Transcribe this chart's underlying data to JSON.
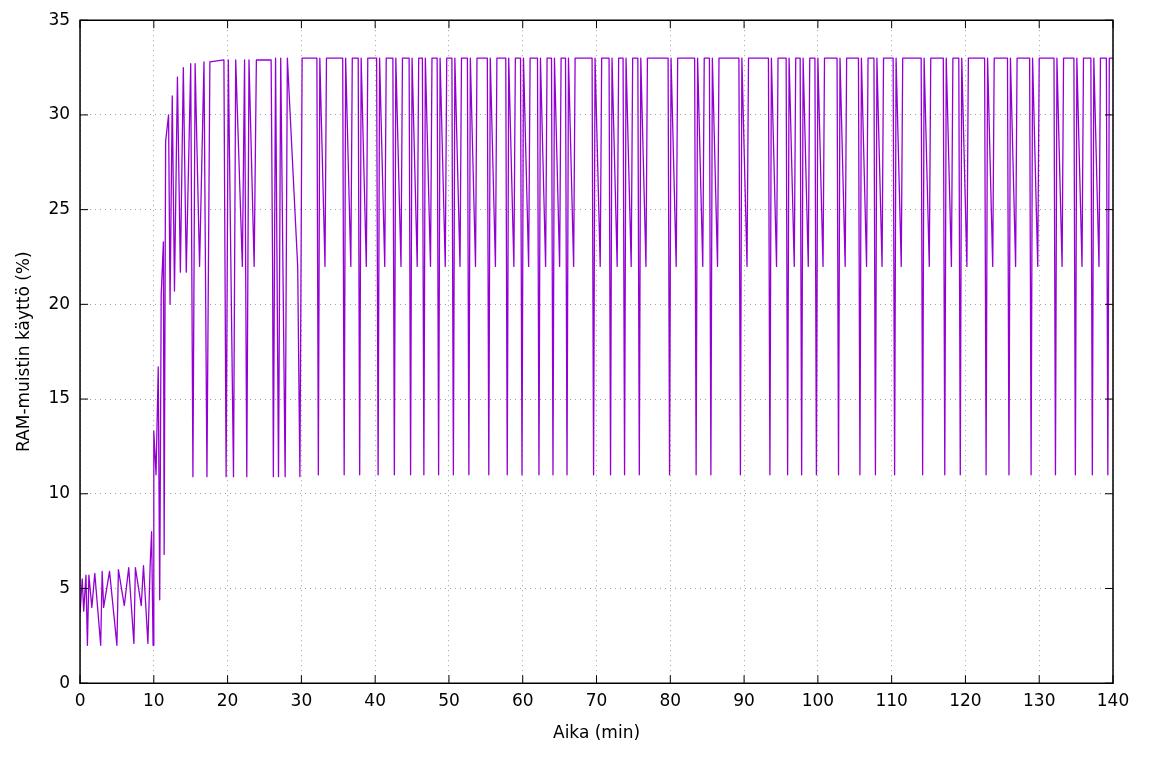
{
  "chart_data": {
    "type": "line",
    "xlabel": "Aika (min)",
    "ylabel": "RAM-muistin käyttö (%)",
    "xlim": [
      0,
      140
    ],
    "xticks": [
      0,
      10,
      20,
      30,
      40,
      50,
      60,
      70,
      80,
      90,
      100,
      110,
      120,
      130,
      140
    ],
    "ylim": [
      0,
      35
    ],
    "yticks": [
      0,
      5,
      10,
      15,
      20,
      25,
      30,
      35
    ],
    "grid": true,
    "legend": false,
    "series": [
      {
        "color": "#9400d3",
        "x": [
          0,
          0.3,
          0.5,
          0.8,
          1.0,
          1.2,
          1.6,
          2.0,
          2.8,
          3.0,
          3.2,
          4.0,
          5.0,
          5.2,
          6.0,
          6.6,
          7.3,
          7.5,
          8.3,
          8.6,
          9.2,
          9.5,
          9.7,
          9.9,
          10.0,
          10.3,
          10.6,
          10.8,
          11.0,
          11.3,
          11.4,
          11.6,
          12.0,
          12.2,
          12.5,
          12.8,
          13.2,
          13.6,
          14.0,
          14.4,
          15.0,
          15.3,
          15.6,
          16.2,
          16.8,
          17.2,
          17.6,
          19.5,
          19.8,
          20.1,
          20.8,
          21.1,
          22.0,
          22.3,
          22.6,
          22.9,
          23.6,
          23.9,
          25.9,
          26.1,
          26.2,
          26.5,
          26.9,
          27.2,
          27.5,
          27.8,
          28.1,
          29.5,
          29.8,
          30.1,
          32.1,
          32.3,
          32.5,
          33.2,
          33.4,
          35.6,
          35.8,
          36,
          36.7,
          36.9,
          37.7,
          37.9,
          38.1,
          38.8,
          39,
          40.2,
          40.4,
          40.6,
          41.3,
          41.5,
          42.4,
          42.6,
          42.8,
          43.5,
          43.7,
          44.6,
          44.8,
          45,
          45.7,
          45.9,
          46.4,
          46.6,
          46.8,
          47.5,
          47.7,
          48.4,
          48.6,
          48.8,
          49.5,
          49.7,
          50.4,
          50.6,
          50.8,
          51.5,
          51.7,
          52.5,
          52.7,
          52.9,
          53.6,
          53.8,
          55.2,
          55.4,
          55.6,
          56.3,
          56.5,
          57.7,
          57.9,
          58.1,
          58.8,
          59,
          59.7,
          59.9,
          60.1,
          60.8,
          61,
          62,
          62.2,
          62.4,
          63.1,
          63.3,
          63.9,
          64.1,
          64.3,
          65,
          65.2,
          65.8,
          66,
          66.2,
          66.9,
          67.1,
          69.4,
          69.6,
          69.8,
          70.5,
          70.7,
          71.7,
          71.9,
          72.1,
          72.8,
          73,
          73.6,
          73.8,
          74,
          74.7,
          74.9,
          75.6,
          75.8,
          76,
          76.7,
          76.9,
          79.7,
          79.9,
          80.1,
          80.8,
          81,
          83.3,
          83.5,
          83.7,
          84.4,
          84.6,
          85.3,
          85.5,
          85.7,
          86.4,
          86.6,
          89.3,
          89.5,
          89.7,
          90.4,
          90.6,
          93.3,
          93.5,
          93.7,
          94.4,
          94.6,
          95.7,
          95.9,
          96.1,
          96.8,
          97,
          97.6,
          97.8,
          98,
          98.7,
          98.9,
          99.6,
          99.8,
          100,
          100.7,
          100.9,
          102.6,
          102.8,
          103,
          103.7,
          103.9,
          105.5,
          105.7,
          105.9,
          106.6,
          106.8,
          107.6,
          107.8,
          108,
          108.7,
          108.9,
          110.2,
          110.4,
          110.6,
          111.3,
          111.5,
          114,
          114.2,
          114.4,
          115.1,
          115.3,
          117,
          117.2,
          117.4,
          118.1,
          118.3,
          119.1,
          119.3,
          119.5,
          120.2,
          120.4,
          122.6,
          122.8,
          123,
          123.7,
          123.9,
          125.7,
          125.9,
          126.1,
          126.8,
          127,
          128.7,
          128.9,
          129.1,
          129.8,
          130,
          132,
          132.2,
          132.4,
          133.1,
          133.3,
          134.7,
          134.9,
          135.1,
          135.8,
          136,
          137,
          137.2,
          137.4,
          138.1,
          138.3,
          139.1,
          139.3,
          139.5,
          140
        ],
        "values": [
          3.7,
          5.5,
          3.8,
          5.7,
          2.0,
          5.7,
          4.0,
          5.8,
          2.0,
          5.9,
          4.0,
          5.9,
          2.0,
          6.0,
          4.1,
          6.1,
          2.1,
          6.1,
          4.1,
          6.2,
          2.1,
          6.2,
          8,
          2.0,
          13.3,
          11,
          16.7,
          4.4,
          20.5,
          23.3,
          6.8,
          28.6,
          30,
          20,
          31,
          20.7,
          32,
          21.7,
          32.5,
          21.7,
          32.7,
          10.9,
          32.7,
          22,
          32.8,
          10.9,
          32.8,
          32.9,
          10.9,
          32.9,
          10.9,
          32.9,
          22,
          32.9,
          10.9,
          32.9,
          22,
          32.9,
          32.9,
          22,
          10.9,
          33,
          10.9,
          33,
          22,
          10.9,
          33,
          22,
          10.9,
          33,
          33,
          11,
          33,
          22,
          33,
          33,
          11,
          33,
          22,
          33,
          33,
          11,
          33,
          22,
          33,
          33,
          11,
          33,
          22,
          33,
          33,
          11,
          33,
          22,
          33,
          33,
          11,
          33,
          22,
          33,
          33,
          11,
          33,
          22,
          33,
          33,
          11,
          33,
          22,
          33,
          33,
          11,
          33,
          22,
          33,
          33,
          11,
          33,
          22,
          33,
          33,
          11,
          33,
          22,
          33,
          33,
          11,
          33,
          22,
          33,
          33,
          11,
          33,
          22,
          33,
          33,
          11,
          33,
          22,
          33,
          33,
          11,
          33,
          22,
          33,
          33,
          11,
          33,
          22,
          33,
          33,
          11,
          33,
          22,
          33,
          33,
          11,
          33,
          22,
          33,
          33,
          11,
          33,
          22,
          33,
          33,
          11,
          33,
          22,
          33,
          33,
          11,
          33,
          22,
          33,
          33,
          11,
          33,
          22,
          33,
          33,
          11,
          33,
          22,
          33,
          33,
          11,
          33,
          22,
          33,
          33,
          11,
          33,
          22,
          33,
          33,
          11,
          33,
          22,
          33,
          33,
          11,
          33,
          22,
          33,
          33,
          11,
          33,
          22,
          33,
          33,
          11,
          33,
          22,
          33,
          33,
          11,
          33,
          22,
          33,
          33,
          11,
          33,
          22,
          33,
          33,
          11,
          33,
          22,
          33,
          33,
          11,
          33,
          22,
          33,
          33,
          11,
          33,
          22,
          33,
          33,
          11,
          33,
          22,
          33,
          33,
          11,
          33,
          22,
          33,
          33,
          11,
          33,
          22,
          33,
          33,
          11,
          33,
          22,
          33,
          33,
          11,
          33,
          22,
          33,
          33,
          11,
          33,
          22,
          33,
          33,
          11,
          33,
          22,
          33,
          33,
          11,
          33,
          33
        ]
      }
    ]
  }
}
